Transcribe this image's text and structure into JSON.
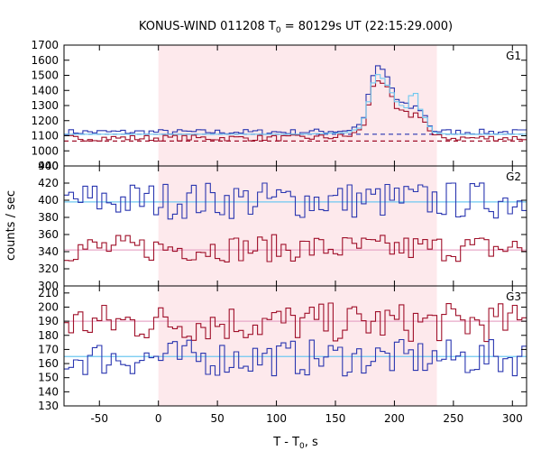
{
  "title_main": "KONUS-WIND 011208 T",
  "title_sub": "0",
  "title_rest": " = 80129s UT (22:15:29.000)",
  "ylabel": "counts / sec",
  "xlabel_main": "T - T",
  "xlabel_sub": "0",
  "xlabel_rest": ", s",
  "colors": {
    "red": "#a0102a",
    "blue": "#2a36b0",
    "cyan": "#6ec8f0",
    "pink": "#e8a8c8",
    "shade": "#fde9ec"
  },
  "chart_data": [
    {
      "type": "line",
      "panel": "G1",
      "xlim": [
        -80,
        312
      ],
      "ylim": [
        900,
        1700
      ],
      "yticks": [
        900,
        1000,
        1100,
        1200,
        1300,
        1400,
        1500,
        1600,
        1700
      ],
      "xticks": [
        -50,
        0,
        50,
        100,
        150,
        200,
        250,
        300
      ],
      "shaded_interval": [
        0,
        236
      ],
      "segment_knots_x": [
        -80,
        -40,
        0,
        40,
        80,
        120,
        160,
        170,
        176,
        180,
        184,
        188,
        192,
        196,
        200,
        204,
        208,
        212,
        216,
        220,
        224,
        228,
        232,
        236,
        250,
        280,
        312
      ],
      "series": [
        {
          "color": "blue",
          "noise": 18,
          "y": [
            1125,
            1125,
            1125,
            1125,
            1125,
            1125,
            1135,
            1170,
            1260,
            1460,
            1540,
            1560,
            1510,
            1460,
            1370,
            1310,
            1320,
            1280,
            1290,
            1290,
            1260,
            1200,
            1140,
            1130,
            1125,
            1125,
            1125
          ]
        },
        {
          "color": "red",
          "noise": 20,
          "y": [
            1085,
            1085,
            1085,
            1085,
            1085,
            1085,
            1095,
            1130,
            1200,
            1390,
            1470,
            1480,
            1430,
            1380,
            1300,
            1250,
            1260,
            1230,
            1240,
            1250,
            1220,
            1160,
            1100,
            1090,
            1085,
            1085,
            1085
          ]
        },
        {
          "color": "cyan",
          "noise": 0,
          "y": [
            1110,
            1110,
            1110,
            1110,
            1110,
            1110,
            1120,
            1150,
            1250,
            1400,
            1500,
            1510,
            1450,
            1420,
            1350,
            1300,
            1300,
            1270,
            1460,
            1300,
            1250,
            1190,
            1130,
            1115,
            1110,
            1110,
            1110
          ]
        }
      ],
      "background_levels": [
        {
          "color": "blue",
          "value": 1110,
          "dashed": true
        },
        {
          "color": "red",
          "value": 1065,
          "dashed": true
        }
      ]
    },
    {
      "type": "line",
      "panel": "G2",
      "xlim": [
        -80,
        312
      ],
      "ylim": [
        300,
        440
      ],
      "yticks": [
        300,
        320,
        340,
        360,
        380,
        400,
        420,
        440
      ],
      "xticks": [
        -50,
        0,
        50,
        100,
        150,
        200,
        250,
        300
      ],
      "shaded_interval": [
        0,
        236
      ],
      "series": [
        {
          "color": "blue",
          "mean": 400,
          "noise": 22
        },
        {
          "color": "red",
          "mean": 344,
          "noise": 16
        }
      ],
      "background_levels": [
        {
          "color": "cyan",
          "value": 398,
          "dashed": false
        },
        {
          "color": "pink",
          "value": 342,
          "dashed": false
        }
      ]
    },
    {
      "type": "line",
      "panel": "G3",
      "xlim": [
        -80,
        312
      ],
      "ylim": [
        130,
        215
      ],
      "yticks": [
        130,
        140,
        150,
        160,
        170,
        180,
        190,
        200,
        210
      ],
      "xticks": [
        -50,
        0,
        50,
        100,
        150,
        200,
        250,
        300
      ],
      "shaded_interval": [
        0,
        236
      ],
      "series": [
        {
          "color": "red",
          "mean": 189,
          "noise": 14
        },
        {
          "color": "blue",
          "mean": 164,
          "noise": 13
        }
      ],
      "background_levels": [
        {
          "color": "cyan",
          "value": 165,
          "dashed": false
        },
        {
          "color": "pink",
          "value": 190,
          "dashed": false
        }
      ]
    }
  ]
}
